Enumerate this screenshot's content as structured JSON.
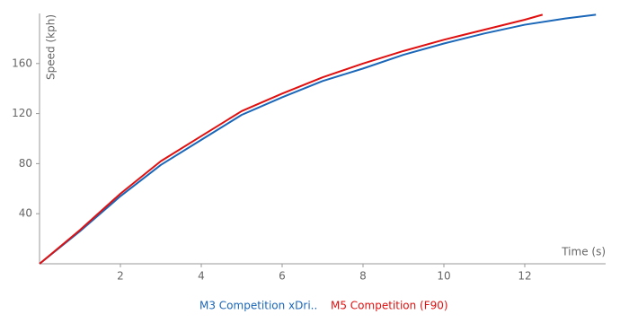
{
  "chart_data": {
    "type": "line",
    "x_label": "Time (s)",
    "y_label": "Speed (kph)",
    "xlim": [
      0,
      14
    ],
    "ylim": [
      0,
      200
    ],
    "xticks": [
      2,
      4,
      6,
      8,
      10,
      12
    ],
    "yticks": [
      40,
      80,
      120,
      160
    ],
    "series": [
      {
        "name": "M3 Competition xDri..",
        "color": "#1a66b8",
        "x": [
          0,
          1,
          2,
          3,
          4,
          5,
          6,
          7,
          8,
          9,
          10,
          11,
          12,
          13,
          13.76
        ],
        "values": [
          0,
          26,
          54,
          79,
          99,
          119,
          133,
          146,
          156,
          167,
          176,
          184,
          191,
          196,
          199
        ]
      },
      {
        "name": "M5 Competition (F90)",
        "color": "#e01010",
        "x": [
          0,
          1,
          2,
          3,
          4,
          5,
          6,
          7,
          8,
          9,
          10,
          11,
          12,
          12.44
        ],
        "values": [
          0,
          27,
          56,
          82,
          102,
          122,
          136,
          149,
          160,
          170,
          179,
          187,
          195,
          199
        ]
      }
    ]
  }
}
